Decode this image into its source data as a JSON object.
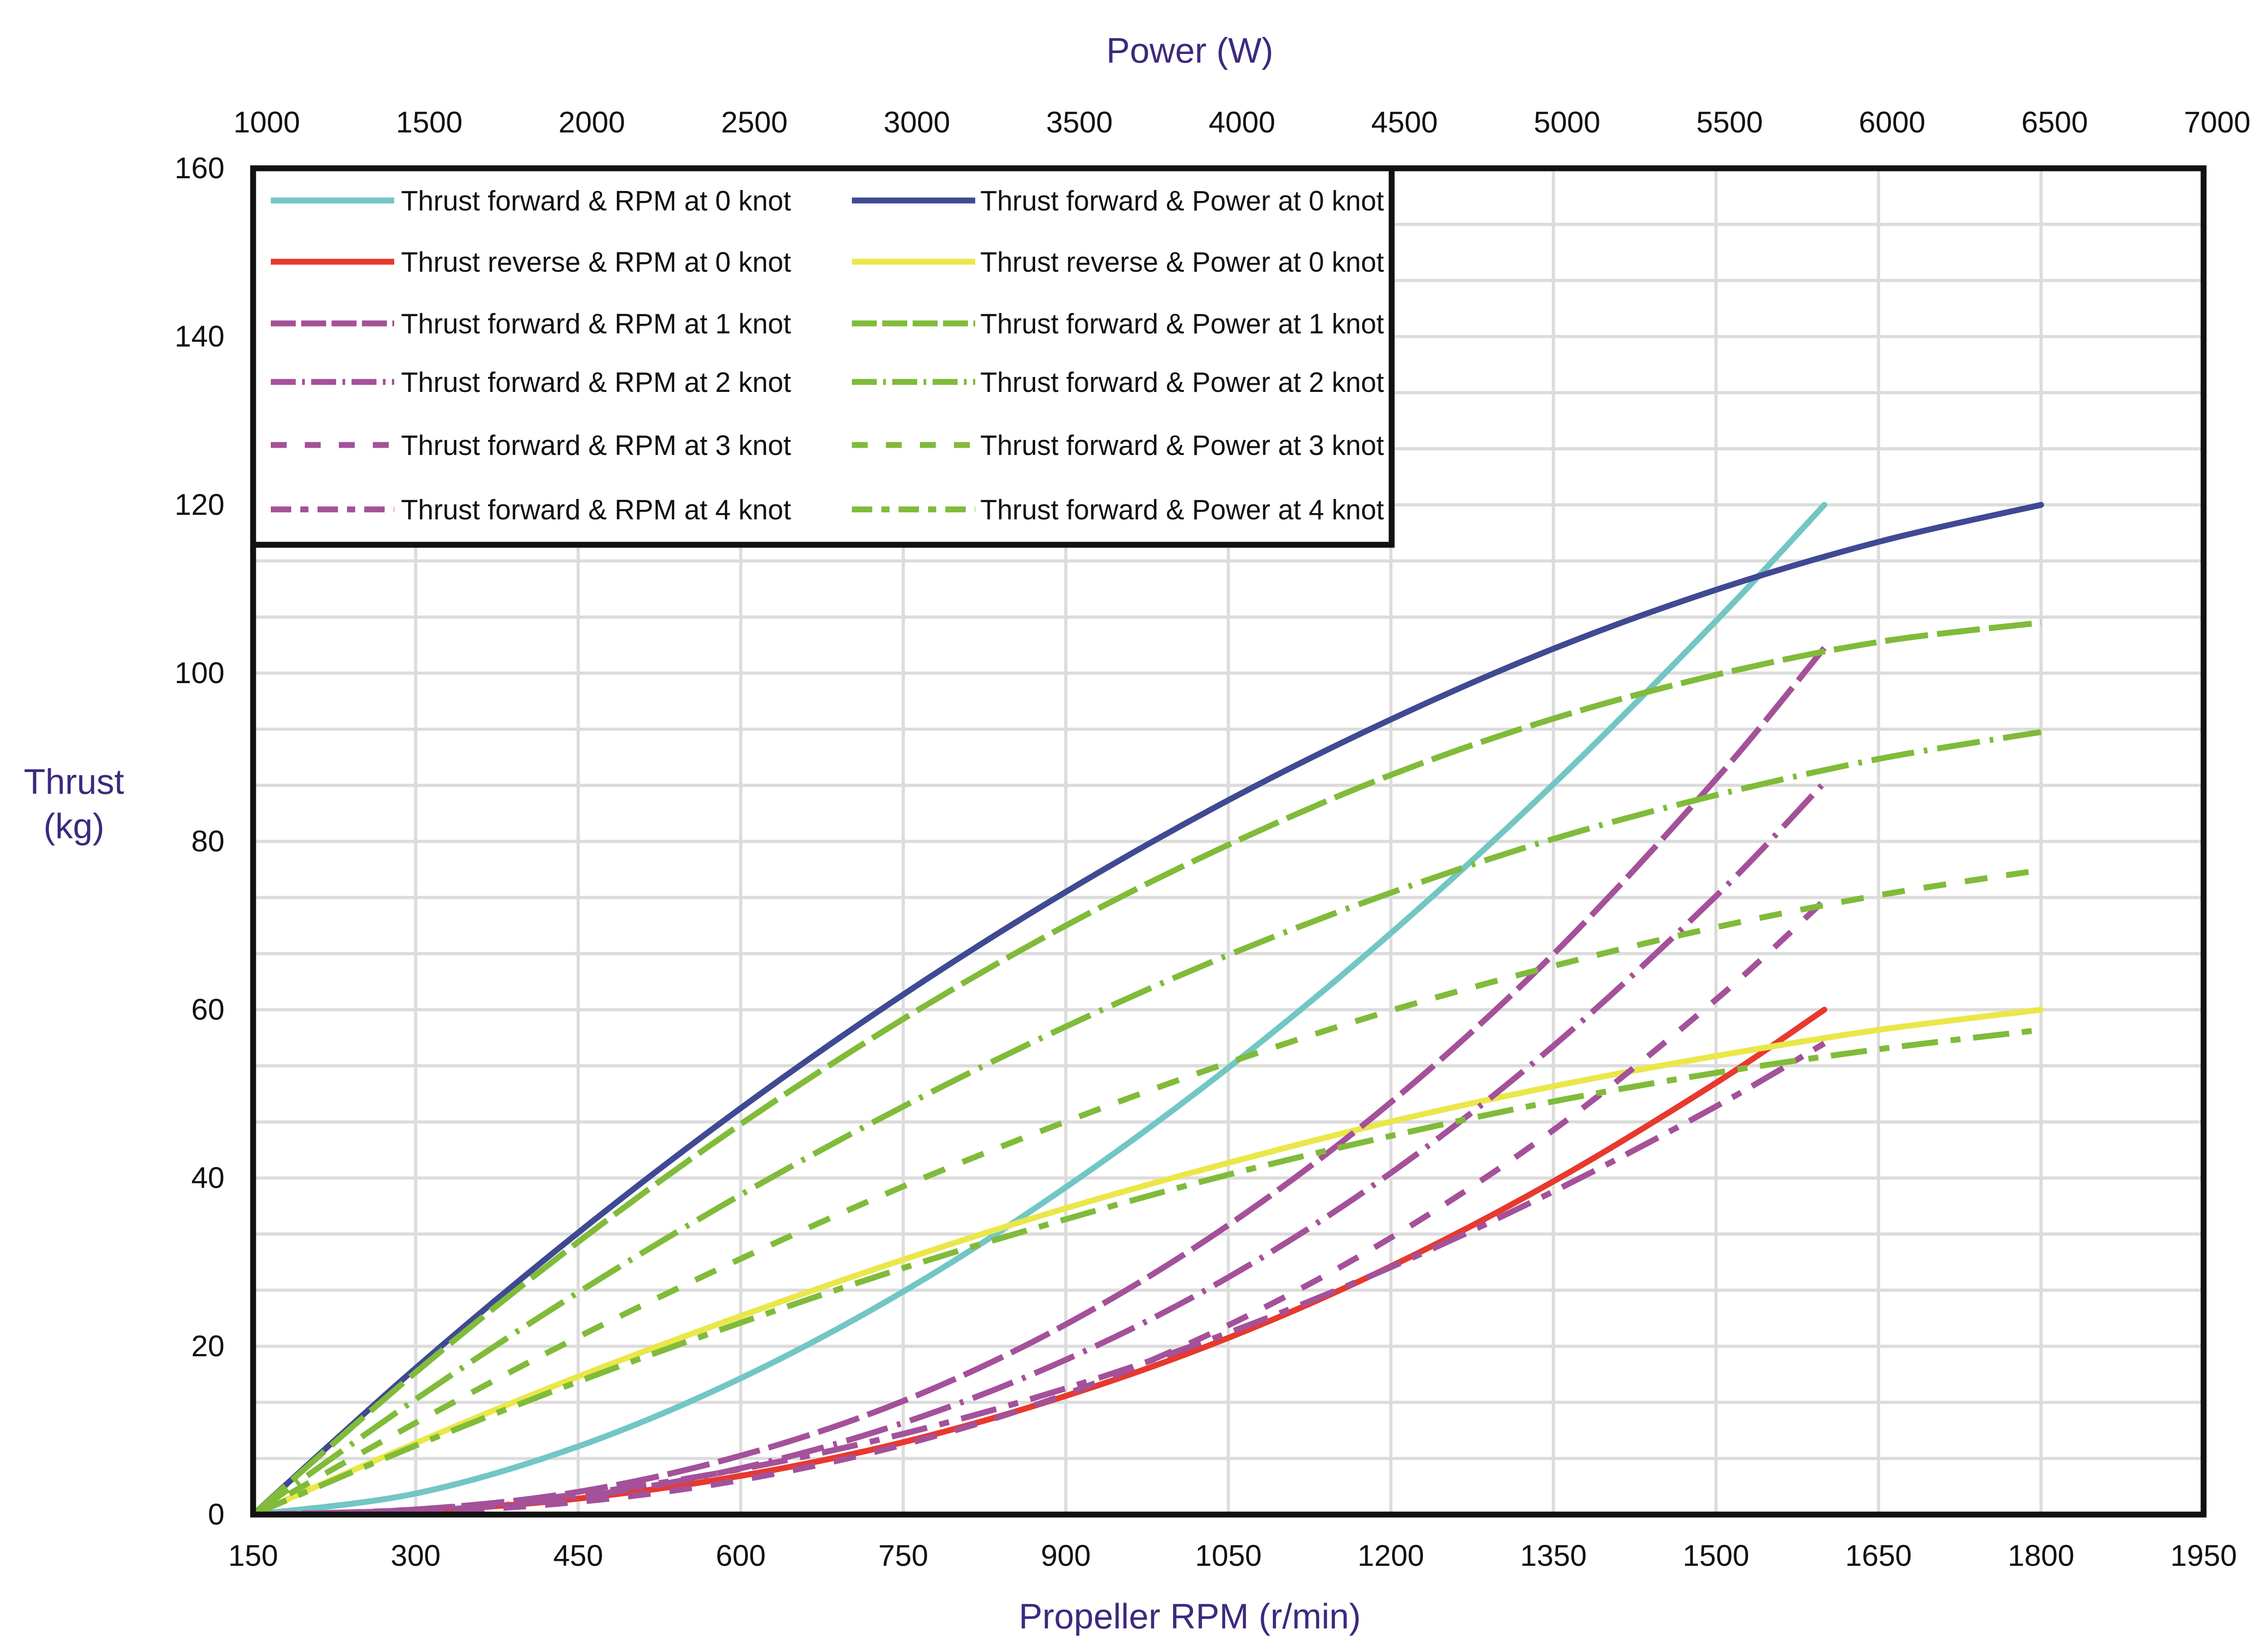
{
  "chart_data": {
    "type": "line",
    "title": "",
    "xlabel": "Propeller RPM (r/min)",
    "x2label": "Power (W)",
    "ylabel": [
      "Thrust",
      "(kg)"
    ],
    "xlim": [
      150,
      1950
    ],
    "x2lim": [
      1000,
      7000
    ],
    "ylim": [
      0,
      160
    ],
    "xticks": [
      "150",
      "300",
      "450",
      "600",
      "750",
      "900",
      "1050",
      "1200",
      "1350",
      "1500",
      "1650",
      "1800",
      "1950"
    ],
    "x2ticks": [
      "1000",
      "1500",
      "2000",
      "2500",
      "3000",
      "3500",
      "4000",
      "4500",
      "5000",
      "5500",
      "6000",
      "6500",
      "7000"
    ],
    "yticks": [
      "0",
      "20",
      "40",
      "60",
      "80",
      "100",
      "120",
      "140",
      "160"
    ],
    "grid": true,
    "legend_position": "top-left",
    "rpm_x": [
      150,
      300,
      450,
      600,
      750,
      900,
      1050,
      1200,
      1350,
      1500,
      1600
    ],
    "power_x": [
      1000,
      1500,
      2000,
      2500,
      3000,
      3500,
      4000,
      4500,
      5000,
      5500,
      6000,
      6500
    ],
    "series": [
      {
        "name": "Thrust forward &  RPM at 0 knot",
        "axis": "rpm",
        "color": "#72c6c4",
        "dash": "solid",
        "values": [
          0,
          2.5,
          8.1,
          16.2,
          26.5,
          38.9,
          53.1,
          69.1,
          86.8,
          106.2,
          120
        ]
      },
      {
        "name": "Thrust forward & Power at 0 knot",
        "axis": "power",
        "color": "#3f4a93",
        "dash": "solid",
        "values": [
          0,
          17.4,
          33.5,
          48.3,
          61.8,
          74.0,
          84.9,
          94.5,
          102.9,
          109.9,
          115.6,
          120
        ]
      },
      {
        "name": "Thrust reverse  &  RPM at 0 knot",
        "axis": "rpm",
        "color": "#e8392d",
        "dash": "solid",
        "values": [
          0,
          0.4,
          1.9,
          4.6,
          8.6,
          14.1,
          21.0,
          29.5,
          39.6,
          51.3,
          60
        ]
      },
      {
        "name": "Thrust reverse & Power at 0 knot",
        "axis": "power",
        "color": "#eae74a",
        "dash": "solid",
        "values": [
          0,
          8.5,
          16.4,
          23.6,
          30.3,
          36.4,
          41.8,
          46.7,
          50.9,
          54.5,
          57.6,
          60
        ]
      },
      {
        "name": "Thrust forward &  RPM at 1 knot",
        "axis": "rpm",
        "color": "#a4519a",
        "dash": "long",
        "values": [
          0,
          0.6,
          2.7,
          7.0,
          13.5,
          22.6,
          34.4,
          49.0,
          66.6,
          87.4,
          103
        ]
      },
      {
        "name": "Thrust forward & Power at 1 knot",
        "axis": "power",
        "color": "#80bb3a",
        "dash": "long",
        "values": [
          0,
          16.9,
          32.4,
          46.4,
          58.9,
          70.0,
          79.6,
          87.9,
          94.6,
          99.8,
          103.7,
          106
        ]
      },
      {
        "name": "Thrust forward &  RPM at 2 knot",
        "axis": "rpm",
        "color": "#a4519a",
        "dash": "dashdot",
        "values": [
          0,
          0.4,
          2.1,
          5.5,
          10.9,
          18.4,
          28.2,
          40.6,
          55.7,
          73.5,
          87
        ]
      },
      {
        "name": "Thrust forward & Power at 2 knot",
        "axis": "power",
        "color": "#80bb3a",
        "dash": "dashdot",
        "values": [
          0,
          13.7,
          26.4,
          38.0,
          48.5,
          58.0,
          66.5,
          73.9,
          80.3,
          85.5,
          89.8,
          93
        ]
      },
      {
        "name": "Thrust forward &  RPM at 3 knot",
        "axis": "rpm",
        "color": "#a4519a",
        "dash": "short",
        "values": [
          0,
          0.3,
          1.5,
          4.1,
          8.3,
          14.3,
          22.5,
          32.9,
          45.7,
          61.2,
          73
        ]
      },
      {
        "name": "Thrust forward & Power at 3 knot",
        "axis": "power",
        "color": "#80bb3a",
        "dash": "short",
        "values": [
          0,
          10.9,
          21.1,
          30.4,
          39.0,
          46.7,
          53.7,
          59.9,
          65.2,
          69.8,
          73.6,
          76.6
        ]
      },
      {
        "name": "Thrust forward &  RPM at 4 knot",
        "axis": "rpm",
        "color": "#a4519a",
        "dash": "dashdotshort",
        "values": [
          0,
          0.6,
          2.4,
          5.4,
          9.6,
          15.0,
          21.6,
          29.4,
          38.4,
          48.5,
          56
        ]
      },
      {
        "name": "Thrust forward & Power at 4 knot",
        "axis": "power",
        "color": "#80bb3a",
        "dash": "dashdotshort",
        "values": [
          0,
          8.2,
          15.8,
          22.8,
          29.3,
          35.1,
          40.4,
          45.0,
          49.1,
          52.5,
          55.3,
          57.6
        ]
      }
    ]
  }
}
